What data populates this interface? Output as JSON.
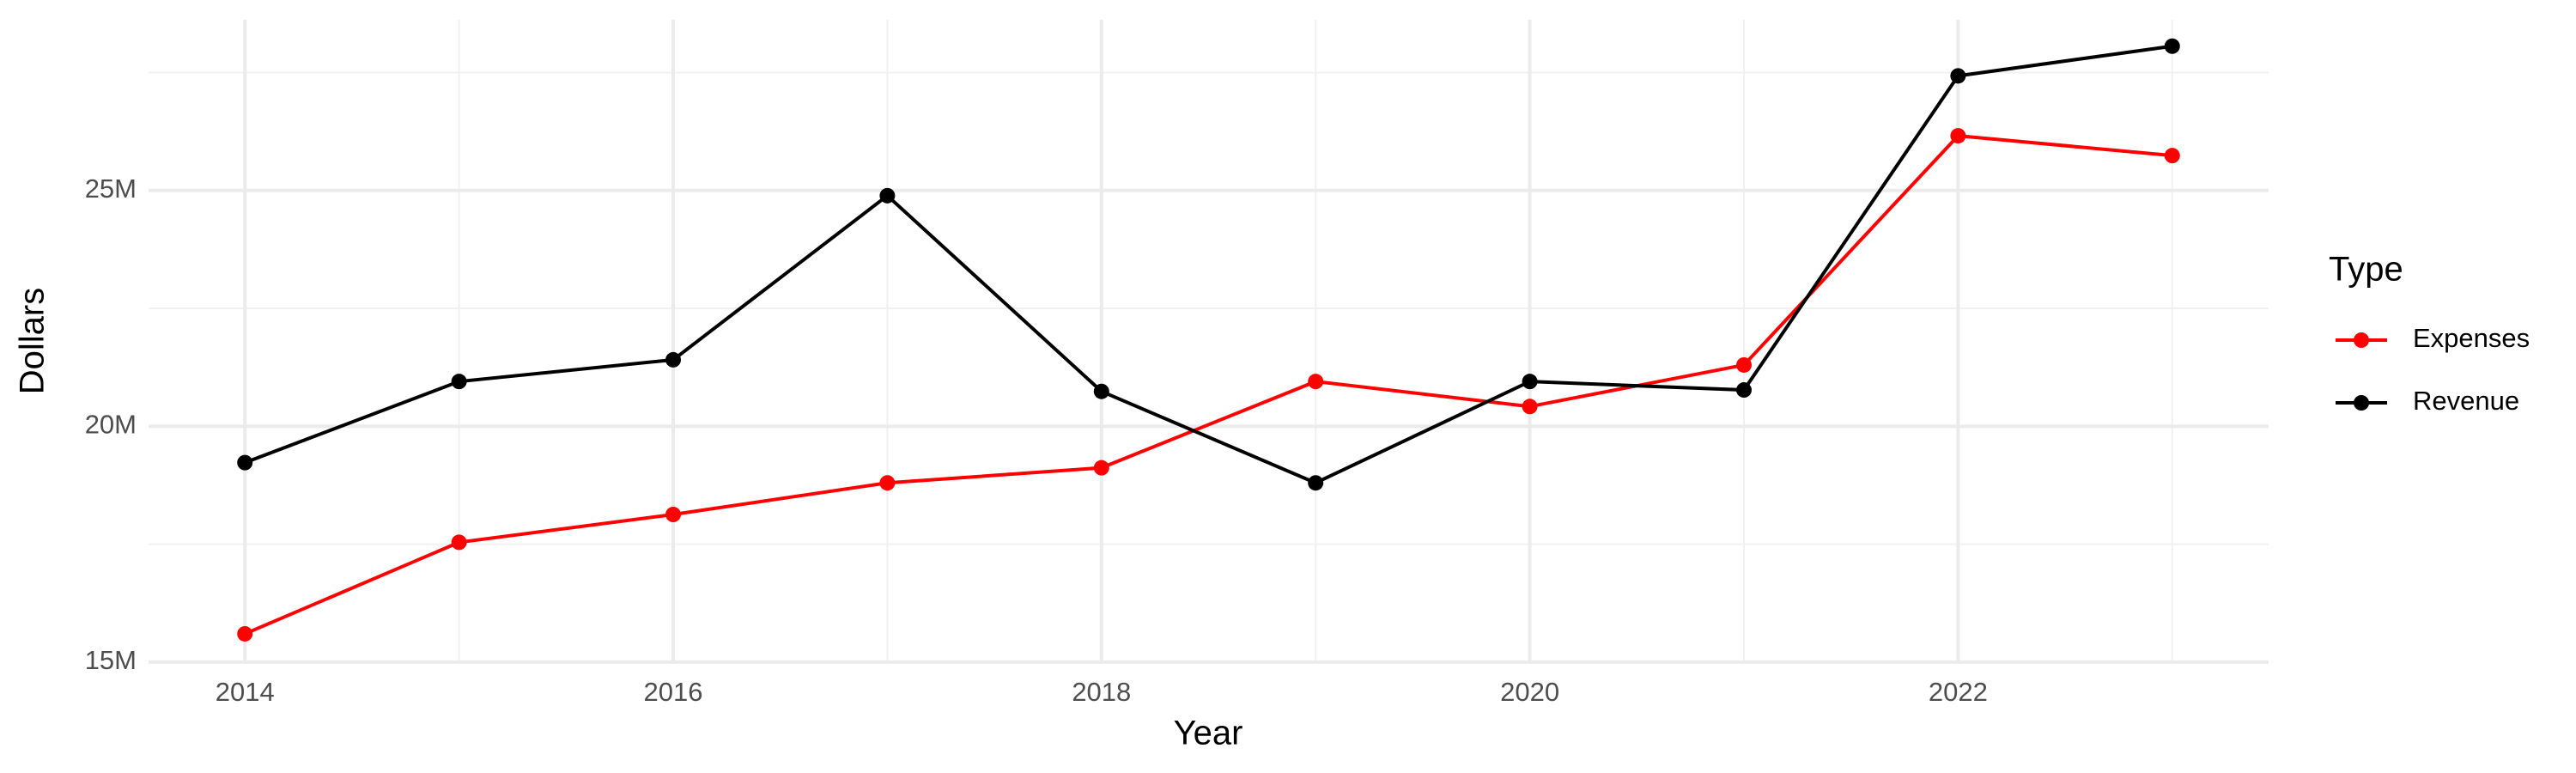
{
  "chart_data": {
    "type": "line",
    "x_label": "Year",
    "y_label": "Dollars",
    "legend_title": "Type",
    "x": [
      2014,
      2015,
      2016,
      2017,
      2018,
      2019,
      2020,
      2021,
      2022,
      2023
    ],
    "series": [
      {
        "name": "Expenses",
        "color": "#ff0000",
        "values": [
          15600000,
          17540000,
          18130000,
          18800000,
          19120000,
          20950000,
          20420000,
          21300000,
          26160000,
          25740000
        ]
      },
      {
        "name": "Revenue",
        "color": "#000000",
        "values": [
          19230000,
          20950000,
          21410000,
          24890000,
          20740000,
          18800000,
          20950000,
          20770000,
          27430000,
          28060000
        ]
      }
    ],
    "xlim": [
      2013.55,
      2023.45
    ],
    "xticks": [
      2014,
      2016,
      2018,
      2020,
      2022
    ],
    "ylim": [
      14980000,
      28620000
    ],
    "yticks": [
      {
        "value": 15000000,
        "label": "15M"
      },
      {
        "value": 20000000,
        "label": "20M"
      },
      {
        "value": 25000000,
        "label": "25M"
      }
    ],
    "grid": true,
    "legend": "right"
  }
}
